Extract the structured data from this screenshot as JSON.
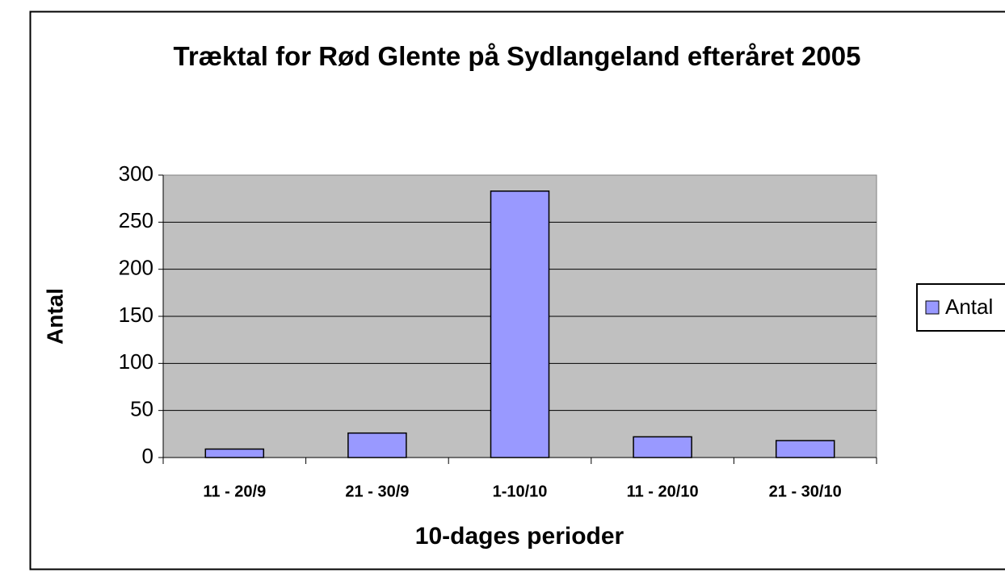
{
  "chart_data": {
    "type": "bar",
    "title": "Træktal for Rød Glente på Sydlangeland efteråret 2005",
    "x_label": "10-dages perioder",
    "y_label": "Antal",
    "categories": [
      "11 - 20/9",
      "21 - 30/9",
      "1-10/10",
      "11 - 20/10",
      "21 - 30/10"
    ],
    "series": [
      {
        "name": "Antal",
        "color": "#9999ff",
        "values": [
          9,
          26,
          283,
          22,
          18
        ]
      }
    ],
    "ylim": [
      0,
      300
    ],
    "yticks": [
      0,
      50,
      100,
      150,
      200,
      250,
      300
    ],
    "grid": true,
    "legend": "right"
  }
}
